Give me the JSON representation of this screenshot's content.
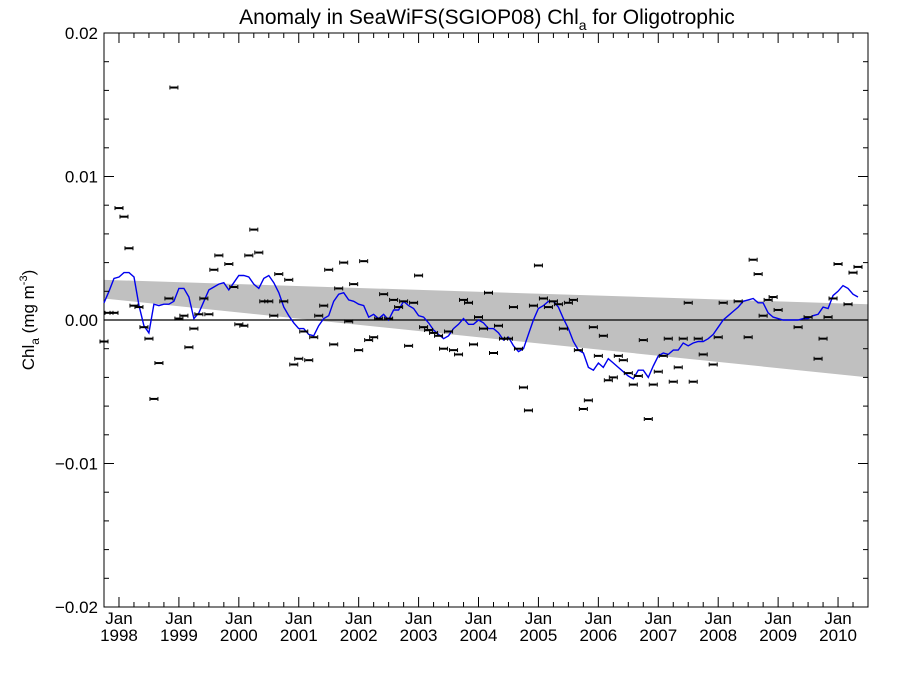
{
  "chart_data": {
    "type": "scatter",
    "title": {
      "main": "Anomaly in SeaWiFS(SGIOP08) Chl",
      "subscript": "a",
      "suffix": " for Oligotrophic"
    },
    "ylabel": {
      "main": "Chl",
      "subscript": "a",
      "unit_open": " (mg m",
      "unit_sup": "-3",
      "unit_close": ")"
    },
    "xlim": [
      "1997-10",
      "2010-07"
    ],
    "ylim": [
      -0.02,
      0.02
    ],
    "y_ticks": [
      {
        "value": 0.02,
        "label": "0.02"
      },
      {
        "value": 0.01,
        "label": "0.01"
      },
      {
        "value": 0.0,
        "label": "0.00"
      },
      {
        "value": -0.01,
        "label": "−0.01"
      },
      {
        "value": -0.02,
        "label": "−0.02"
      }
    ],
    "x_ticks": [
      {
        "date": "1998-01",
        "month": "Jan",
        "year": "1998"
      },
      {
        "date": "1999-01",
        "month": "Jan",
        "year": "1999"
      },
      {
        "date": "2000-01",
        "month": "Jan",
        "year": "2000"
      },
      {
        "date": "2001-01",
        "month": "Jan",
        "year": "2001"
      },
      {
        "date": "2002-01",
        "month": "Jan",
        "year": "2002"
      },
      {
        "date": "2003-01",
        "month": "Jan",
        "year": "2003"
      },
      {
        "date": "2004-01",
        "month": "Jan",
        "year": "2004"
      },
      {
        "date": "2005-01",
        "month": "Jan",
        "year": "2005"
      },
      {
        "date": "2006-01",
        "month": "Jan",
        "year": "2006"
      },
      {
        "date": "2007-01",
        "month": "Jan",
        "year": "2007"
      },
      {
        "date": "2008-01",
        "month": "Jan",
        "year": "2008"
      },
      {
        "date": "2009-01",
        "month": "Jan",
        "year": "2009"
      },
      {
        "date": "2010-01",
        "month": "Jan",
        "year": "2010"
      }
    ],
    "zero_line": 0.0,
    "confidence_band": {
      "start": {
        "date": "1997-10",
        "upper": 0.0028,
        "lower": 0.0015
      },
      "end": {
        "date": "2010-07",
        "upper": 0.0011,
        "lower": -0.004
      },
      "color": "#c0c0c0"
    },
    "monthly_anomalies": {
      "color": "#000000",
      "points": [
        [
          "1997-10",
          -0.0015
        ],
        [
          "1997-11",
          0.0005
        ],
        [
          "1997-12",
          0.0005
        ],
        [
          "1998-01",
          0.0078
        ],
        [
          "1998-02",
          0.0072
        ],
        [
          "1998-03",
          0.005
        ],
        [
          "1998-04",
          0.001
        ],
        [
          "1998-05",
          0.0009
        ],
        [
          "1998-06",
          -0.0005
        ],
        [
          "1998-07",
          -0.0013
        ],
        [
          "1998-08",
          -0.0055
        ],
        [
          "1998-09",
          -0.003
        ],
        [
          "1998-11",
          0.0015
        ],
        [
          "1998-12",
          0.0162
        ],
        [
          "1999-01",
          0.0001
        ],
        [
          "1999-02",
          0.0003
        ],
        [
          "1999-03",
          -0.0019
        ],
        [
          "1999-04",
          -0.0006
        ],
        [
          "1999-05",
          0.0004
        ],
        [
          "1999-06",
          0.0015
        ],
        [
          "1999-07",
          0.0004
        ],
        [
          "1999-08",
          0.0035
        ],
        [
          "1999-09",
          0.0045
        ],
        [
          "1999-11",
          0.0039
        ],
        [
          "1999-12",
          0.0023
        ],
        [
          "2000-01",
          -0.0003
        ],
        [
          "2000-02",
          -0.0004
        ],
        [
          "2000-03",
          0.0045
        ],
        [
          "2000-04",
          0.0063
        ],
        [
          "2000-05",
          0.0047
        ],
        [
          "2000-06",
          0.0013
        ],
        [
          "2000-07",
          0.0013
        ],
        [
          "2000-08",
          0.0003
        ],
        [
          "2000-09",
          0.0032
        ],
        [
          "2000-10",
          0.0013
        ],
        [
          "2000-11",
          0.0028
        ],
        [
          "2000-12",
          -0.0031
        ],
        [
          "2001-01",
          -0.0027
        ],
        [
          "2001-02",
          -0.0008
        ],
        [
          "2001-03",
          -0.0028
        ],
        [
          "2001-04",
          -0.0012
        ],
        [
          "2001-05",
          0.0003
        ],
        [
          "2001-06",
          0.001
        ],
        [
          "2001-07",
          0.0035
        ],
        [
          "2001-08",
          -0.0017
        ],
        [
          "2001-09",
          0.0022
        ],
        [
          "2001-10",
          0.004
        ],
        [
          "2001-11",
          -0.0001
        ],
        [
          "2001-12",
          0.0025
        ],
        [
          "2002-01",
          -0.0021
        ],
        [
          "2002-02",
          0.0041
        ],
        [
          "2002-03",
          -0.0014
        ],
        [
          "2002-04",
          -0.0012
        ],
        [
          "2002-05",
          0.0001
        ],
        [
          "2002-06",
          0.0018
        ],
        [
          "2002-07",
          0.0001
        ],
        [
          "2002-08",
          0.0014
        ],
        [
          "2002-09",
          0.0009
        ],
        [
          "2002-10",
          0.0013
        ],
        [
          "2002-11",
          -0.0018
        ],
        [
          "2002-12",
          0.0012
        ],
        [
          "2003-01",
          0.0031
        ],
        [
          "2003-02",
          -0.0005
        ],
        [
          "2003-03",
          -0.0007
        ],
        [
          "2003-04",
          -0.0009
        ],
        [
          "2003-05",
          -0.0011
        ],
        [
          "2003-06",
          -0.002
        ],
        [
          "2003-07",
          -0.0008
        ],
        [
          "2003-08",
          -0.0021
        ],
        [
          "2003-09",
          -0.0024
        ],
        [
          "2003-10",
          0.0014
        ],
        [
          "2003-11",
          0.0012
        ],
        [
          "2003-12",
          -0.0017
        ],
        [
          "2004-01",
          0.0002
        ],
        [
          "2004-02",
          -0.0006
        ],
        [
          "2004-03",
          0.0019
        ],
        [
          "2004-04",
          -0.0023
        ],
        [
          "2004-05",
          -0.0004
        ],
        [
          "2004-06",
          -0.0013
        ],
        [
          "2004-07",
          -0.0013
        ],
        [
          "2004-08",
          0.0009
        ],
        [
          "2004-09",
          -0.002
        ],
        [
          "2004-10",
          -0.0047
        ],
        [
          "2004-11",
          -0.0063
        ],
        [
          "2004-12",
          0.001
        ],
        [
          "2005-01",
          0.0038
        ],
        [
          "2005-02",
          0.0015
        ],
        [
          "2005-03",
          0.0009
        ],
        [
          "2005-04",
          0.0013
        ],
        [
          "2005-05",
          0.0011
        ],
        [
          "2005-06",
          -0.0006
        ],
        [
          "2005-07",
          0.0012
        ],
        [
          "2005-08",
          0.0014
        ],
        [
          "2005-09",
          -0.0021
        ],
        [
          "2005-10",
          -0.0062
        ],
        [
          "2005-11",
          -0.0056
        ],
        [
          "2005-12",
          -0.0005
        ],
        [
          "2006-01",
          -0.0025
        ],
        [
          "2006-02",
          -0.0011
        ],
        [
          "2006-03",
          -0.0042
        ],
        [
          "2006-04",
          -0.004
        ],
        [
          "2006-05",
          -0.0025
        ],
        [
          "2006-06",
          -0.0028
        ],
        [
          "2006-07",
          -0.0037
        ],
        [
          "2006-08",
          -0.0045
        ],
        [
          "2006-09",
          -0.0039
        ],
        [
          "2006-10",
          -0.0014
        ],
        [
          "2006-11",
          -0.0069
        ],
        [
          "2006-12",
          -0.0045
        ],
        [
          "2007-01",
          -0.0036
        ],
        [
          "2007-02",
          -0.0025
        ],
        [
          "2007-03",
          -0.0013
        ],
        [
          "2007-04",
          -0.0043
        ],
        [
          "2007-05",
          -0.0033
        ],
        [
          "2007-06",
          -0.0013
        ],
        [
          "2007-07",
          0.0012
        ],
        [
          "2007-08",
          -0.0043
        ],
        [
          "2007-09",
          -0.0013
        ],
        [
          "2007-10",
          -0.0024
        ],
        [
          "2007-12",
          -0.0031
        ],
        [
          "2008-01",
          -0.0012
        ],
        [
          "2008-02",
          0.0012
        ],
        [
          "2008-05",
          0.0013
        ],
        [
          "2008-07",
          -0.0012
        ],
        [
          "2008-08",
          0.0042
        ],
        [
          "2008-09",
          0.0032
        ],
        [
          "2008-10",
          0.0003
        ],
        [
          "2008-11",
          0.0014
        ],
        [
          "2008-12",
          0.0016
        ],
        [
          "2009-01",
          0.0007
        ],
        [
          "2009-05",
          -0.0005
        ],
        [
          "2009-07",
          0.0002
        ],
        [
          "2009-09",
          -0.0027
        ],
        [
          "2009-10",
          -0.0013
        ],
        [
          "2009-11",
          0.0002
        ],
        [
          "2009-12",
          0.0015
        ],
        [
          "2010-01",
          0.0039
        ],
        [
          "2010-03",
          0.0011
        ],
        [
          "2010-04",
          0.0033
        ],
        [
          "2010-05",
          0.0037
        ]
      ]
    },
    "smoothed_series": {
      "color": "#0000ee",
      "points": [
        [
          "1997-10",
          0.0012
        ],
        [
          "1997-11",
          0.002
        ],
        [
          "1997-12",
          0.0029
        ],
        [
          "1998-01",
          0.003
        ],
        [
          "1998-02",
          0.0033
        ],
        [
          "1998-03",
          0.0033
        ],
        [
          "1998-04",
          0.003
        ],
        [
          "1998-05",
          0.001
        ],
        [
          "1998-06",
          -0.0004
        ],
        [
          "1998-07",
          -0.0009
        ],
        [
          "1998-08",
          0.0011
        ],
        [
          "1998-09",
          0.001
        ],
        [
          "1998-10",
          0.0011
        ],
        [
          "1998-11",
          0.0011
        ],
        [
          "1998-12",
          0.0013
        ],
        [
          "1999-01",
          0.0022
        ],
        [
          "1999-02",
          0.0022
        ],
        [
          "1999-03",
          0.0016
        ],
        [
          "1999-04",
          0.0001
        ],
        [
          "1999-05",
          0.0005
        ],
        [
          "1999-06",
          0.0013
        ],
        [
          "1999-07",
          0.0021
        ],
        [
          "1999-08",
          0.0023
        ],
        [
          "1999-09",
          0.0025
        ],
        [
          "1999-10",
          0.0026
        ],
        [
          "1999-11",
          0.0021
        ],
        [
          "1999-12",
          0.0026
        ],
        [
          "2000-01",
          0.0031
        ],
        [
          "2000-02",
          0.0031
        ],
        [
          "2000-03",
          0.003
        ],
        [
          "2000-04",
          0.0025
        ],
        [
          "2000-05",
          0.0022
        ],
        [
          "2000-06",
          0.0029
        ],
        [
          "2000-07",
          0.0031
        ],
        [
          "2000-08",
          0.0026
        ],
        [
          "2000-09",
          0.0019
        ],
        [
          "2000-10",
          0.0009
        ],
        [
          "2000-11",
          0.0003
        ],
        [
          "2000-12",
          -0.0002
        ],
        [
          "2001-01",
          -0.0006
        ],
        [
          "2001-02",
          -0.0006
        ],
        [
          "2001-03",
          -0.001
        ],
        [
          "2001-04",
          -0.0011
        ],
        [
          "2001-05",
          -0.0004
        ],
        [
          "2001-06",
          0.0001
        ],
        [
          "2001-07",
          0.0003
        ],
        [
          "2001-08",
          0.0013
        ],
        [
          "2001-09",
          0.0018
        ],
        [
          "2001-10",
          0.0019
        ],
        [
          "2001-11",
          0.0014
        ],
        [
          "2001-12",
          0.0013
        ],
        [
          "2002-01",
          0.0011
        ],
        [
          "2002-02",
          0.001
        ],
        [
          "2002-03",
          0.0002
        ],
        [
          "2002-04",
          0.0004
        ],
        [
          "2002-05",
          0.0001
        ],
        [
          "2002-06",
          0.0004
        ],
        [
          "2002-07",
          0.0
        ],
        [
          "2002-08",
          0.0007
        ],
        [
          "2002-09",
          0.0007
        ],
        [
          "2002-10",
          0.0013
        ],
        [
          "2002-11",
          0.001
        ],
        [
          "2002-12",
          0.0008
        ],
        [
          "2003-01",
          0.0003
        ],
        [
          "2003-02",
          0.0002
        ],
        [
          "2003-03",
          -0.0002
        ],
        [
          "2003-04",
          -0.0007
        ],
        [
          "2003-05",
          -0.001
        ],
        [
          "2003-06",
          -0.0013
        ],
        [
          "2003-07",
          -0.0011
        ],
        [
          "2003-08",
          -0.0006
        ],
        [
          "2003-09",
          -0.0003
        ],
        [
          "2003-10",
          0.0001
        ],
        [
          "2003-11",
          -0.0003
        ],
        [
          "2003-12",
          -0.0003
        ],
        [
          "2004-01",
          0.0
        ],
        [
          "2004-02",
          -0.0002
        ],
        [
          "2004-03",
          -0.0006
        ],
        [
          "2004-04",
          -0.0006
        ],
        [
          "2004-05",
          -0.0009
        ],
        [
          "2004-06",
          -0.0014
        ],
        [
          "2004-07",
          -0.0012
        ],
        [
          "2004-08",
          -0.0018
        ],
        [
          "2004-09",
          -0.0022
        ],
        [
          "2004-10",
          -0.002
        ],
        [
          "2004-11",
          -0.001
        ],
        [
          "2004-12",
          0.0
        ],
        [
          "2005-01",
          0.0008
        ],
        [
          "2005-02",
          0.001
        ],
        [
          "2005-03",
          0.0013
        ],
        [
          "2005-04",
          0.0013
        ],
        [
          "2005-05",
          0.0009
        ],
        [
          "2005-06",
          0.0001
        ],
        [
          "2005-07",
          -0.0006
        ],
        [
          "2005-08",
          -0.0015
        ],
        [
          "2005-09",
          -0.0021
        ],
        [
          "2005-10",
          -0.0023
        ],
        [
          "2005-11",
          -0.0033
        ],
        [
          "2005-12",
          -0.0035
        ],
        [
          "2006-01",
          -0.003
        ],
        [
          "2006-02",
          -0.0033
        ],
        [
          "2006-03",
          -0.0027
        ],
        [
          "2006-04",
          -0.003
        ],
        [
          "2006-05",
          -0.0033
        ],
        [
          "2006-06",
          -0.0036
        ],
        [
          "2006-07",
          -0.0039
        ],
        [
          "2006-08",
          -0.0041
        ],
        [
          "2006-09",
          -0.0035
        ],
        [
          "2006-10",
          -0.0035
        ],
        [
          "2006-11",
          -0.004
        ],
        [
          "2006-12",
          -0.0032
        ],
        [
          "2007-01",
          -0.0025
        ],
        [
          "2007-02",
          -0.0023
        ],
        [
          "2007-03",
          -0.0024
        ],
        [
          "2007-04",
          -0.0021
        ],
        [
          "2007-05",
          -0.0021
        ],
        [
          "2007-06",
          -0.0016
        ],
        [
          "2007-07",
          -0.0018
        ],
        [
          "2007-08",
          -0.0016
        ],
        [
          "2007-09",
          -0.0015
        ],
        [
          "2007-10",
          -0.0015
        ],
        [
          "2007-11",
          -0.0013
        ],
        [
          "2007-12",
          -0.001
        ],
        [
          "2008-01",
          -0.0005
        ],
        [
          "2008-02",
          0.0
        ],
        [
          "2008-03",
          0.0003
        ],
        [
          "2008-04",
          0.0006
        ],
        [
          "2008-05",
          0.0009
        ],
        [
          "2008-06",
          0.0013
        ],
        [
          "2008-07",
          0.0014
        ],
        [
          "2008-08",
          0.0015
        ],
        [
          "2008-09",
          0.0012
        ],
        [
          "2008-10",
          0.0012
        ],
        [
          "2008-11",
          0.0005
        ],
        [
          "2008-12",
          0.0002
        ],
        [
          "2009-01",
          0.0001
        ],
        [
          "2009-02",
          0.0
        ],
        [
          "2009-03",
          0.0
        ],
        [
          "2009-04",
          0.0
        ],
        [
          "2009-05",
          0.0
        ],
        [
          "2009-06",
          0.0001
        ],
        [
          "2009-07",
          0.0001
        ],
        [
          "2009-08",
          0.0003
        ],
        [
          "2009-09",
          0.0004
        ],
        [
          "2009-10",
          0.0009
        ],
        [
          "2009-11",
          0.0008
        ],
        [
          "2009-12",
          0.0017
        ],
        [
          "2010-01",
          0.002
        ],
        [
          "2010-02",
          0.0024
        ],
        [
          "2010-03",
          0.0022
        ],
        [
          "2010-04",
          0.0018
        ],
        [
          "2010-05",
          0.0016
        ]
      ]
    }
  }
}
